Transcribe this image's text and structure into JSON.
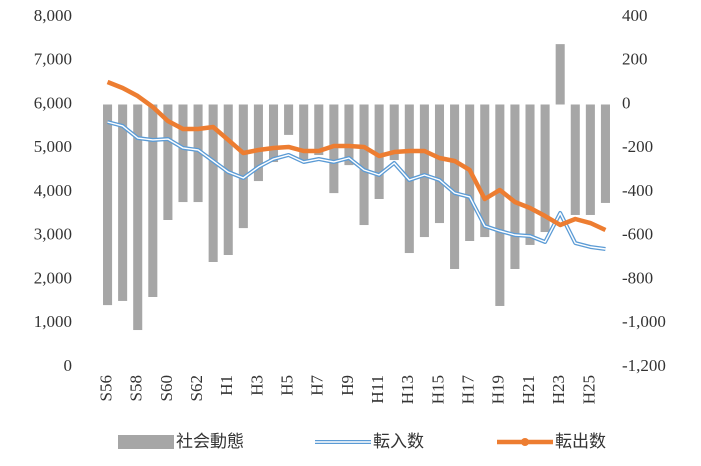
{
  "chart_data": {
    "type": "bar-line",
    "categories": [
      "S56",
      null,
      "S58",
      null,
      "S60",
      null,
      "S62",
      null,
      "H1",
      null,
      "H3",
      null,
      "H5",
      null,
      "H7",
      null,
      "H9",
      null,
      "H11",
      null,
      "H13",
      null,
      "H15",
      null,
      "H17",
      null,
      "H19",
      null,
      "H21",
      null,
      "H23",
      null,
      "H25",
      null
    ],
    "series": [
      {
        "name": "社会動態",
        "type": "bar",
        "axis": "y2",
        "color": "#a6a6a6",
        "values": [
          -917,
          -898,
          -1031,
          -880,
          -528,
          -446,
          -446,
          -720,
          -688,
          -565,
          -350,
          -263,
          -139,
          -254,
          -231,
          -405,
          -277,
          -551,
          -432,
          -254,
          -679,
          -606,
          -542,
          -752,
          -624,
          -606,
          -921,
          -752,
          -642,
          -583,
          276,
          -505,
          -505,
          -450
        ]
      },
      {
        "name": "転入数",
        "type": "line",
        "color": "#5b9bd5",
        "values": [
          5600,
          5509,
          5234,
          5189,
          5211,
          5006,
          4960,
          4709,
          4457,
          4320,
          4571,
          4754,
          4846,
          4686,
          4754,
          4686,
          4777,
          4503,
          4389,
          4663,
          4274,
          4389,
          4274,
          3977,
          3886,
          3223,
          3109,
          3017,
          2994,
          2857,
          3520,
          2834,
          2743,
          2697
        ]
      },
      {
        "name": "転出数",
        "type": "line",
        "color": "#ed7d31",
        "values": [
          6514,
          6377,
          6194,
          5943,
          5623,
          5440,
          5440,
          5486,
          5189,
          4891,
          4960,
          5006,
          5029,
          4937,
          4937,
          5051,
          5051,
          5029,
          4823,
          4914,
          4937,
          4937,
          4777,
          4709,
          4503,
          3840,
          4046,
          3771,
          3634,
          3451,
          3246,
          3383,
          3291,
          3131
        ]
      }
    ],
    "ylim": [
      0,
      8000
    ],
    "yticks": [
      0,
      {
        "value": 1000,
        "label": "1,000"
      },
      {
        "value": 2000,
        "label": "2,000"
      },
      {
        "value": 3000,
        "label": "3,000"
      },
      {
        "value": 4000,
        "label": "4,000"
      },
      {
        "value": 5000,
        "label": "5,000"
      },
      {
        "value": 6000,
        "label": "6,000"
      },
      {
        "value": 7000,
        "label": "7,000"
      },
      {
        "value": 8000,
        "label": "8,000"
      }
    ],
    "y2lim": [
      -1200,
      400
    ],
    "y2ticks": [
      {
        "value": -1200,
        "label": "-1,200"
      },
      {
        "value": -1000,
        "label": "-1,000"
      },
      -800,
      -600,
      -400,
      -200,
      0,
      200,
      400
    ],
    "legend": "bottom"
  }
}
